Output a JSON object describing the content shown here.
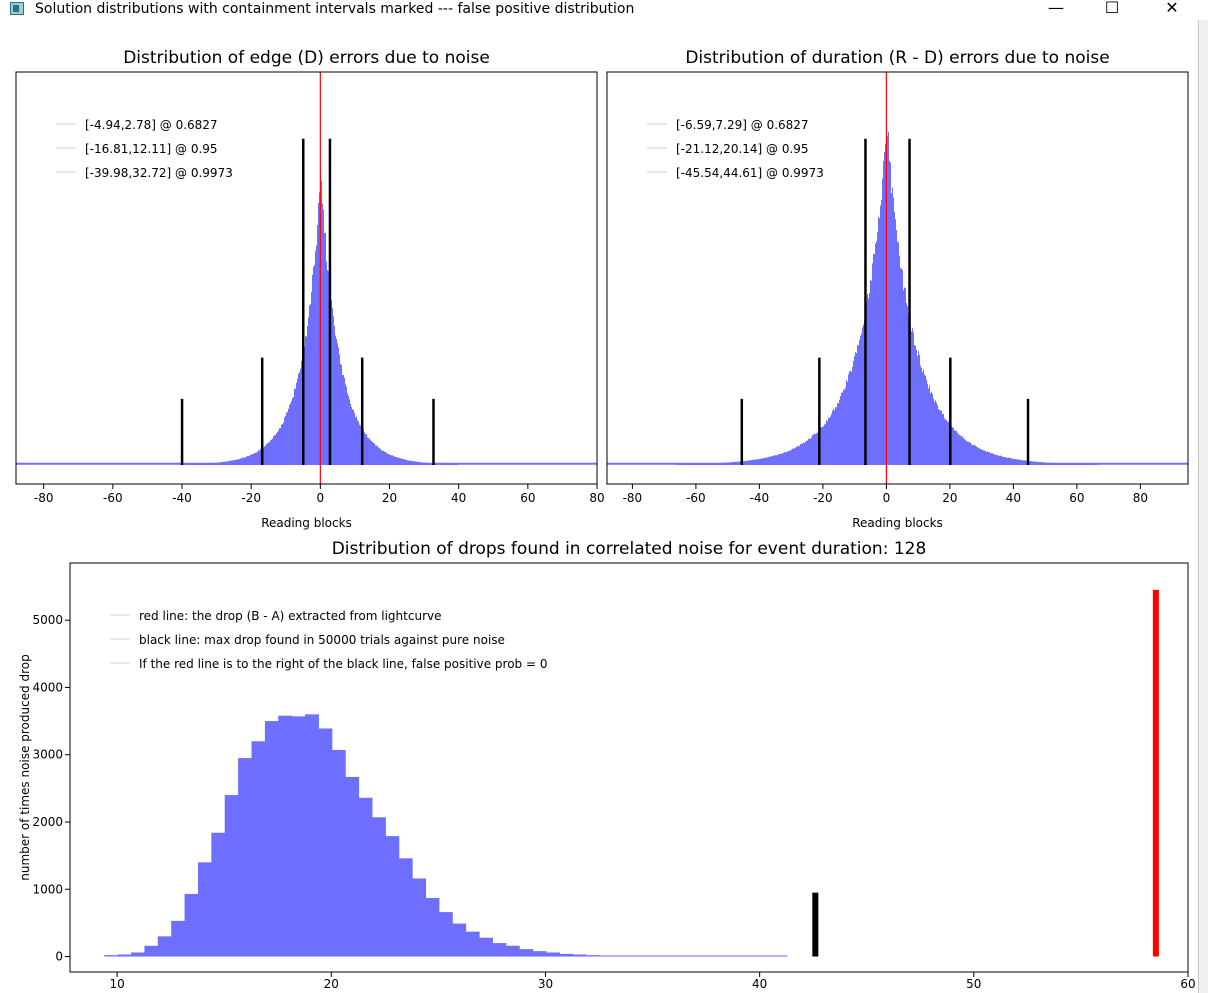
{
  "window": {
    "title": "Solution distributions with containment intervals marked --- false positive distribution",
    "buttons": [
      "minimize",
      "maximize",
      "close"
    ]
  },
  "chart_data": [
    {
      "type": "bar",
      "title": "Distribution of edge (D) errors due to noise",
      "xlabel": "Reading blocks",
      "ylabel": "",
      "xlim": [
        -88,
        80
      ],
      "xticks": [
        -80,
        -60,
        -40,
        -20,
        0,
        20,
        40,
        60,
        80
      ],
      "y_axis_shown": false,
      "series_color": "#6e6eff",
      "distribution": {
        "center": 0,
        "peak_relative_height": 1.0,
        "description_shape": "sharply peaked, heavy tails"
      },
      "zero_line": {
        "x": 0,
        "color": "#ff0000"
      },
      "legend": [
        "[-4.94,2.78] @ 0.6827",
        "[-16.81,12.11] @ 0.95",
        "[-39.98,32.72] @ 0.9973"
      ],
      "intervals": [
        {
          "low": -4.94,
          "high": 2.78,
          "level": 0.6827
        },
        {
          "low": -16.81,
          "high": 12.11,
          "level": 0.95
        },
        {
          "low": -39.98,
          "high": 32.72,
          "level": 0.9973
        }
      ]
    },
    {
      "type": "bar",
      "title": "Distribution of duration (R - D) errors due to noise",
      "xlabel": "Reading blocks",
      "ylabel": "",
      "xlim": [
        -88,
        95
      ],
      "xticks": [
        -80,
        -60,
        -40,
        -20,
        0,
        20,
        40,
        60,
        80
      ],
      "y_axis_shown": false,
      "series_color": "#6e6eff",
      "zero_line": {
        "x": 0,
        "color": "#ff0000"
      },
      "legend": [
        "[-6.59,7.29] @ 0.6827",
        "[-21.12,20.14] @ 0.95",
        "[-45.54,44.61] @ 0.9973"
      ],
      "intervals": [
        {
          "low": -6.59,
          "high": 7.29,
          "level": 0.6827
        },
        {
          "low": -21.12,
          "high": 20.14,
          "level": 0.95
        },
        {
          "low": -45.54,
          "high": 44.61,
          "level": 0.9973
        }
      ]
    },
    {
      "type": "bar",
      "title": "Distribution of drops found in correlated noise for event duration: 128",
      "xlabel": "",
      "ylabel": "number of times noise produced drop",
      "xlim": [
        7.8,
        60
      ],
      "ylim": [
        -230,
        5850
      ],
      "xticks": [
        10,
        20,
        30,
        40,
        50,
        60
      ],
      "yticks": [
        0,
        1000,
        2000,
        3000,
        4000,
        5000
      ],
      "bin_width": 0.625,
      "bin_start": 9.4,
      "values": [
        20,
        30,
        60,
        160,
        300,
        530,
        930,
        1400,
        1840,
        2400,
        2950,
        3200,
        3500,
        3580,
        3570,
        3600,
        3390,
        3070,
        2670,
        2360,
        2070,
        1790,
        1460,
        1160,
        870,
        660,
        490,
        370,
        280,
        200,
        160,
        110,
        80,
        60,
        40,
        30,
        20,
        15,
        10,
        8,
        6,
        5,
        4,
        3,
        2,
        2,
        1,
        1,
        1,
        1,
        1
      ],
      "series_color": "#6e6eff",
      "black_line": {
        "x": 42.6,
        "height": 950,
        "color": "#000000"
      },
      "red_line": {
        "x": 58.5,
        "height": 5450,
        "color": "#ff0000"
      },
      "legend": [
        "red line: the drop (B - A) extracted from lightcurve",
        "black line: max drop found in 50000 trials against pure noise",
        "If the red line is to the right of the black line, false positive prob = 0"
      ]
    }
  ]
}
